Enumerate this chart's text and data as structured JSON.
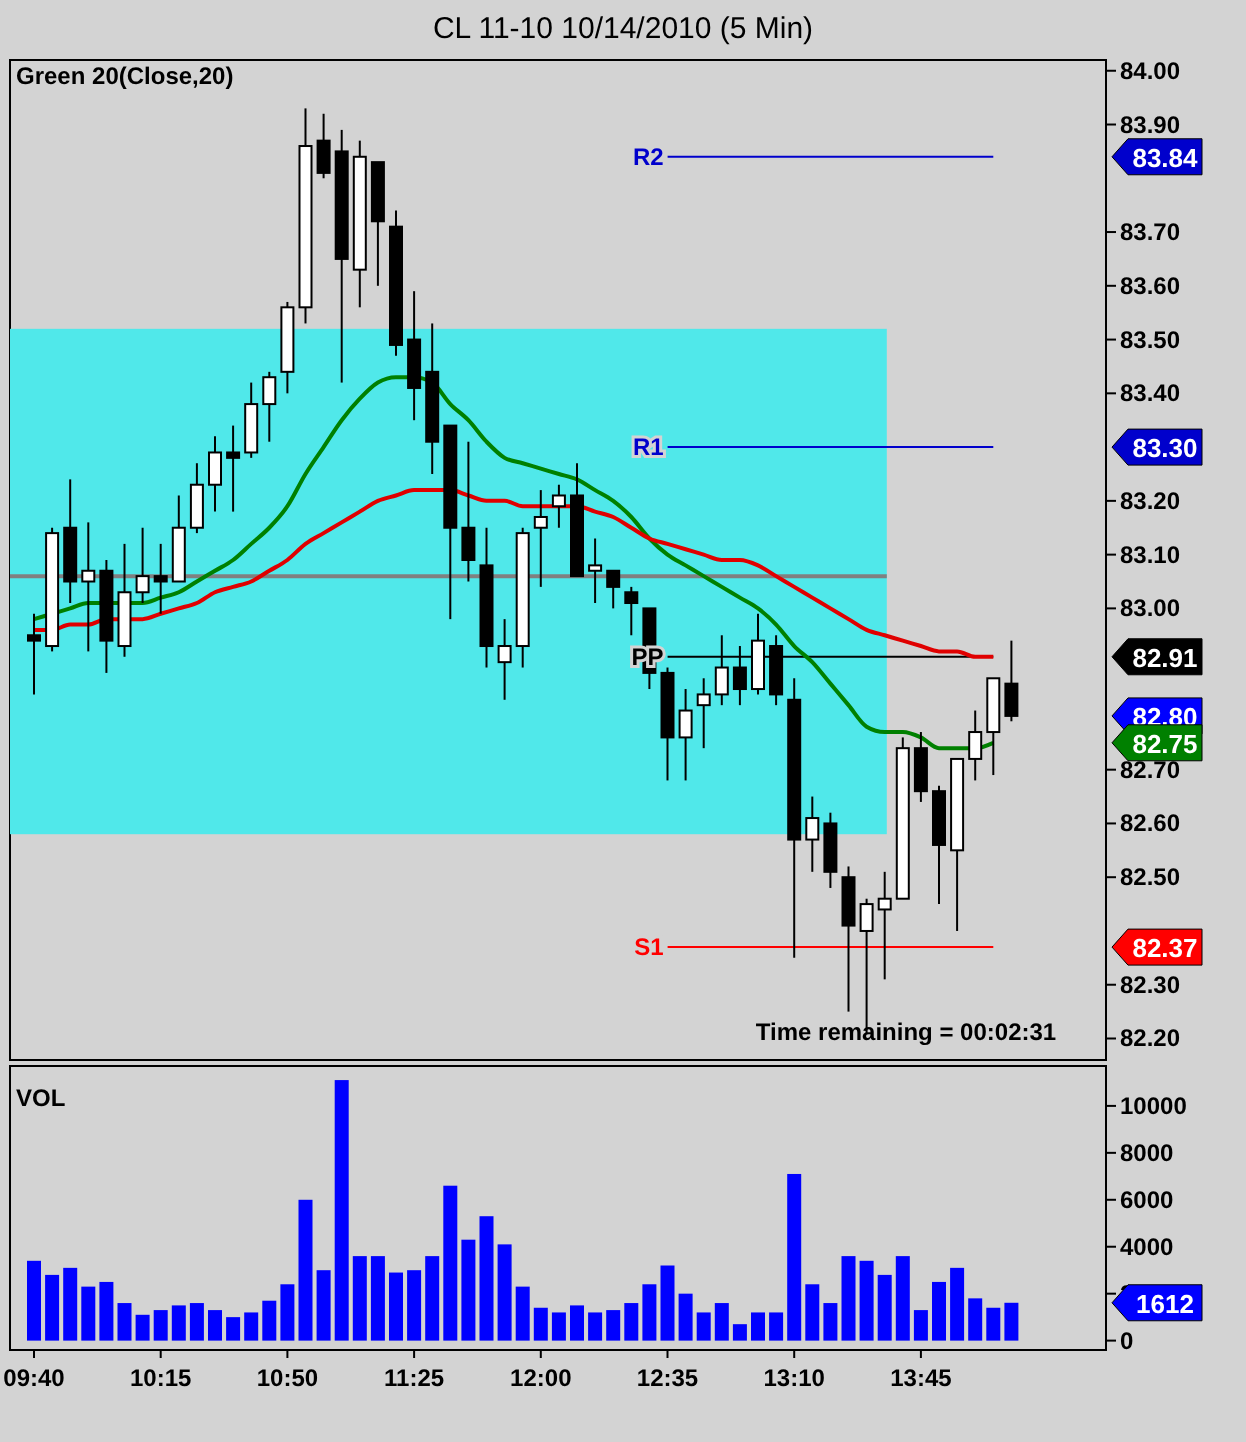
{
  "chart_data": [
    {
      "type": "candlestick",
      "title": "CL 11-10  10/14/2010 (5 Min)",
      "subtitle": "Green 20(Close,20)",
      "categories": [
        null,
        null,
        null,
        null,
        null,
        null,
        null,
        null,
        null,
        null,
        null,
        null,
        null,
        null,
        null,
        null,
        null,
        null,
        null,
        null,
        null,
        null,
        null,
        null,
        null,
        null,
        null,
        null,
        null,
        null,
        null,
        null,
        null,
        null,
        null,
        null,
        null,
        null,
        null,
        null,
        null,
        null,
        null,
        null,
        null,
        null,
        null,
        null,
        null,
        null,
        null,
        null,
        null,
        null,
        null
      ],
      "ohlc": [
        [
          82.95,
          82.99,
          82.84,
          82.94
        ],
        [
          82.93,
          83.15,
          82.92,
          83.14
        ],
        [
          83.15,
          83.24,
          83.01,
          83.05
        ],
        [
          83.05,
          83.16,
          82.92,
          83.07
        ],
        [
          83.07,
          83.09,
          82.88,
          82.94
        ],
        [
          82.93,
          83.12,
          82.91,
          83.03
        ],
        [
          83.03,
          83.15,
          83.01,
          83.06
        ],
        [
          83.06,
          83.12,
          82.99,
          83.05
        ],
        [
          83.05,
          83.21,
          83.05,
          83.15
        ],
        [
          83.15,
          83.27,
          83.14,
          83.23
        ],
        [
          83.23,
          83.32,
          83.18,
          83.29
        ],
        [
          83.29,
          83.34,
          83.18,
          83.28
        ],
        [
          83.29,
          83.42,
          83.28,
          83.38
        ],
        [
          83.38,
          83.44,
          83.31,
          83.43
        ],
        [
          83.44,
          83.57,
          83.4,
          83.56
        ],
        [
          83.56,
          83.93,
          83.53,
          83.86
        ],
        [
          83.87,
          83.92,
          83.8,
          83.81
        ],
        [
          83.85,
          83.89,
          83.42,
          83.65
        ],
        [
          83.63,
          83.87,
          83.56,
          83.84
        ],
        [
          83.83,
          83.83,
          83.6,
          83.72
        ],
        [
          83.71,
          83.74,
          83.47,
          83.49
        ],
        [
          83.5,
          83.59,
          83.35,
          83.41
        ],
        [
          83.44,
          83.53,
          83.25,
          83.31
        ],
        [
          83.34,
          83.34,
          82.98,
          83.15
        ],
        [
          83.15,
          83.31,
          83.05,
          83.09
        ],
        [
          83.08,
          83.15,
          82.89,
          82.93
        ],
        [
          82.9,
          82.98,
          82.83,
          82.93
        ],
        [
          82.93,
          83.15,
          82.89,
          83.14
        ],
        [
          83.15,
          83.22,
          83.04,
          83.17
        ],
        [
          83.19,
          83.23,
          83.15,
          83.21
        ],
        [
          83.21,
          83.27,
          83.06,
          83.06
        ],
        [
          83.07,
          83.13,
          83.01,
          83.08
        ],
        [
          83.07,
          83.07,
          83.0,
          83.04
        ],
        [
          83.03,
          83.04,
          82.95,
          83.01
        ],
        [
          83.0,
          83.0,
          82.85,
          82.88
        ],
        [
          82.88,
          82.89,
          82.68,
          82.76
        ],
        [
          82.76,
          82.85,
          82.68,
          82.81
        ],
        [
          82.82,
          82.87,
          82.74,
          82.84
        ],
        [
          82.84,
          82.95,
          82.82,
          82.89
        ],
        [
          82.89,
          82.93,
          82.82,
          82.85
        ],
        [
          82.85,
          82.99,
          82.84,
          82.94
        ],
        [
          82.93,
          82.95,
          82.82,
          82.84
        ],
        [
          82.83,
          82.87,
          82.35,
          82.57
        ],
        [
          82.57,
          82.65,
          82.51,
          82.61
        ],
        [
          82.6,
          82.62,
          82.48,
          82.51
        ],
        [
          82.5,
          82.52,
          82.25,
          82.41
        ],
        [
          82.4,
          82.46,
          82.21,
          82.45
        ],
        [
          82.44,
          82.51,
          82.31,
          82.46
        ],
        [
          82.46,
          82.76,
          82.46,
          82.74
        ],
        [
          82.74,
          82.77,
          82.64,
          82.66
        ],
        [
          82.66,
          82.67,
          82.45,
          82.56
        ],
        [
          82.55,
          82.72,
          82.4,
          82.72
        ],
        [
          82.72,
          82.81,
          82.68,
          82.77
        ],
        [
          82.77,
          82.87,
          82.69,
          82.87
        ],
        [
          82.86,
          82.94,
          82.79,
          82.8
        ]
      ],
      "series": [
        {
          "type": "line",
          "color": "#008000",
          "values": [
            82.98,
            82.99,
            83.0,
            83.01,
            83.01,
            83.01,
            83.01,
            83.02,
            83.03,
            83.05,
            83.07,
            83.09,
            83.12,
            83.15,
            83.19,
            83.25,
            83.3,
            83.35,
            83.39,
            83.42,
            83.43,
            83.43,
            83.42,
            83.38,
            83.35,
            83.31,
            83.28,
            83.27,
            83.26,
            83.25,
            83.24,
            83.22,
            83.2,
            83.17,
            83.13,
            83.1,
            83.08,
            83.06,
            83.04,
            83.02,
            83.0,
            82.97,
            82.93,
            82.9,
            82.86,
            82.82,
            82.78,
            82.77,
            82.77,
            82.76,
            82.74,
            82.74,
            82.74,
            82.75,
            null
          ]
        },
        {
          "type": "line",
          "color": "#e00000",
          "values": [
            82.96,
            82.96,
            82.97,
            82.97,
            82.98,
            82.98,
            82.98,
            82.99,
            83.0,
            83.01,
            83.03,
            83.04,
            83.05,
            83.07,
            83.09,
            83.12,
            83.14,
            83.16,
            83.18,
            83.2,
            83.21,
            83.22,
            83.22,
            83.22,
            83.21,
            83.2,
            83.2,
            83.19,
            83.19,
            83.19,
            83.19,
            83.18,
            83.17,
            83.15,
            83.13,
            83.12,
            83.11,
            83.1,
            83.09,
            83.09,
            83.08,
            83.06,
            83.04,
            83.02,
            83.0,
            82.98,
            82.96,
            82.95,
            82.94,
            82.93,
            82.92,
            82.92,
            82.91,
            82.91,
            null
          ]
        }
      ],
      "ylim": [
        82.16,
        84.02
      ],
      "yticks": [
        {
          "value": 82.2,
          "label": "82.20"
        },
        {
          "value": 82.3,
          "label": "82.30"
        },
        {
          "value": 82.5,
          "label": "82.50"
        },
        {
          "value": 82.6,
          "label": "82.60"
        },
        {
          "value": 82.7,
          "label": "82.70"
        },
        {
          "value": 83,
          "label": "83.00"
        },
        {
          "value": 83.1,
          "label": "83.10"
        },
        {
          "value": 83.2,
          "label": "83.20"
        },
        {
          "value": 83.4,
          "label": "83.40"
        },
        {
          "value": 83.5,
          "label": "83.50"
        },
        {
          "value": 83.6,
          "label": "83.60"
        },
        {
          "value": 83.7,
          "label": "83.70"
        },
        {
          "value": 83.9,
          "label": "83.90"
        },
        {
          "value": 84,
          "label": "84.00"
        }
      ],
      "y2lim": [
        82.16,
        84.02
      ],
      "y2ticks": [
        {
          "value": 83.84,
          "label": "83.84"
        },
        {
          "value": 83.3,
          "label": "83.30"
        },
        {
          "value": 82.91,
          "label": "82.91"
        },
        {
          "value": 82.8,
          "label": "82.80"
        },
        {
          "value": 82.75,
          "label": "82.75"
        },
        {
          "value": 82.37,
          "label": "82.37"
        }
      ],
      "tick_labels": "y",
      "bands": [
        {
          "axis": "y",
          "from": 82.58,
          "to": 83.52,
          "color": "#50e8ea"
        }
      ],
      "ref_lines": [
        {
          "axis": "y",
          "value": 83.84,
          "label": "R2",
          "color": "#0000cc"
        },
        {
          "axis": "y",
          "value": 83.3,
          "label": "R1",
          "color": "#0000cc"
        },
        {
          "axis": "y",
          "value": 82.91,
          "label": "PP",
          "color": "#000000"
        },
        {
          "axis": "y",
          "value": 82.37,
          "label": "S1",
          "color": "#ff0000"
        },
        {
          "axis": "y",
          "value": 83.06,
          "color": "#808080"
        }
      ],
      "annotations": [
        "Time remaining = 00:02:31"
      ]
    },
    {
      "type": "bar",
      "title": "VOL",
      "categories": [
        "09:40",
        null,
        null,
        null,
        null,
        null,
        null,
        "10:15",
        null,
        null,
        null,
        null,
        null,
        null,
        "10:50",
        null,
        null,
        null,
        null,
        null,
        null,
        "11:25",
        null,
        null,
        null,
        null,
        null,
        null,
        "12:00",
        null,
        null,
        null,
        null,
        null,
        null,
        "12:35",
        null,
        null,
        null,
        null,
        null,
        null,
        "13:10",
        null,
        null,
        null,
        null,
        null,
        null,
        "13:45",
        null,
        null,
        null,
        null,
        null
      ],
      "values": [
        3400,
        2800,
        3100,
        2300,
        2500,
        1600,
        1100,
        1300,
        1500,
        1600,
        1300,
        1000,
        1200,
        1700,
        2400,
        6000,
        3000,
        11100,
        3600,
        3600,
        2900,
        3000,
        3600,
        6600,
        4300,
        5300,
        4100,
        2300,
        1400,
        1200,
        1500,
        1200,
        1300,
        1600,
        2400,
        3200,
        2000,
        1200,
        1600,
        700,
        1200,
        1200,
        7100,
        2400,
        1600,
        3600,
        3400,
        2800,
        3600,
        1300,
        2500,
        3100,
        1800,
        1400,
        1612
      ],
      "color": "#0000ff",
      "ylim": [
        -400,
        11700
      ],
      "yticks": [
        0,
        2000,
        4000,
        6000,
        8000,
        10000
      ],
      "annotations": [
        "1612"
      ]
    }
  ]
}
